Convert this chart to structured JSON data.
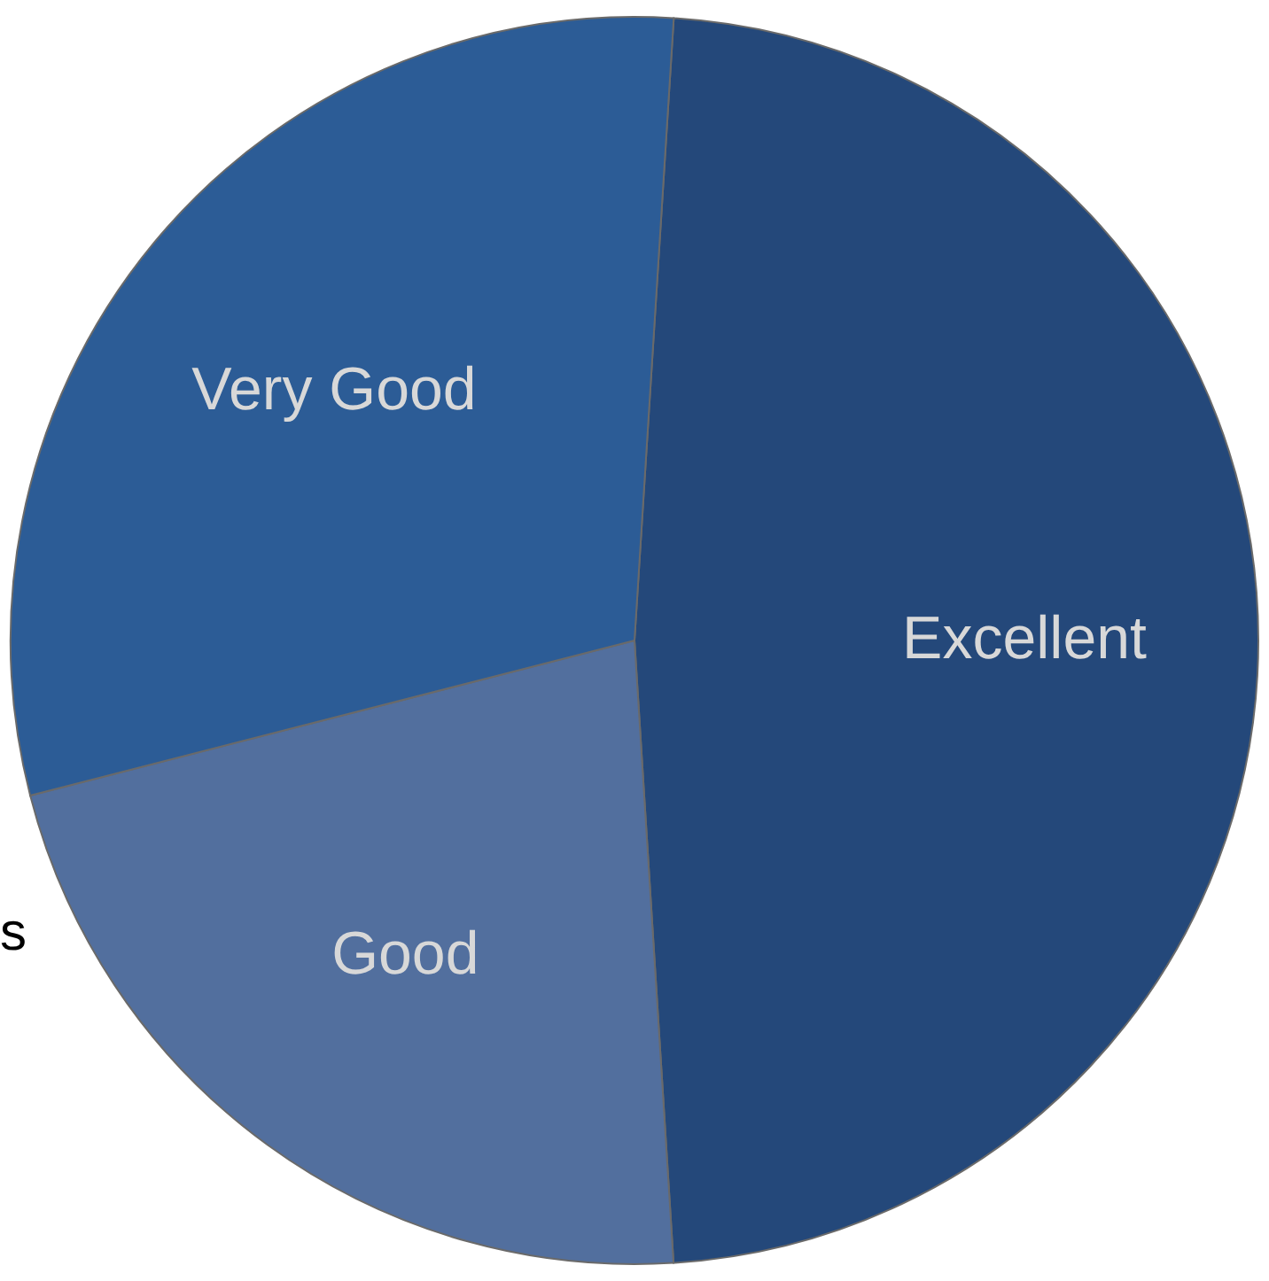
{
  "chart_data": {
    "type": "pie",
    "categories": [
      "Excellent",
      "Good",
      "Very Good"
    ],
    "values": [
      48,
      22,
      30
    ],
    "colors": [
      "#24487a",
      "#526f9e",
      "#2c5c96"
    ],
    "annotations": [
      "s"
    ]
  }
}
